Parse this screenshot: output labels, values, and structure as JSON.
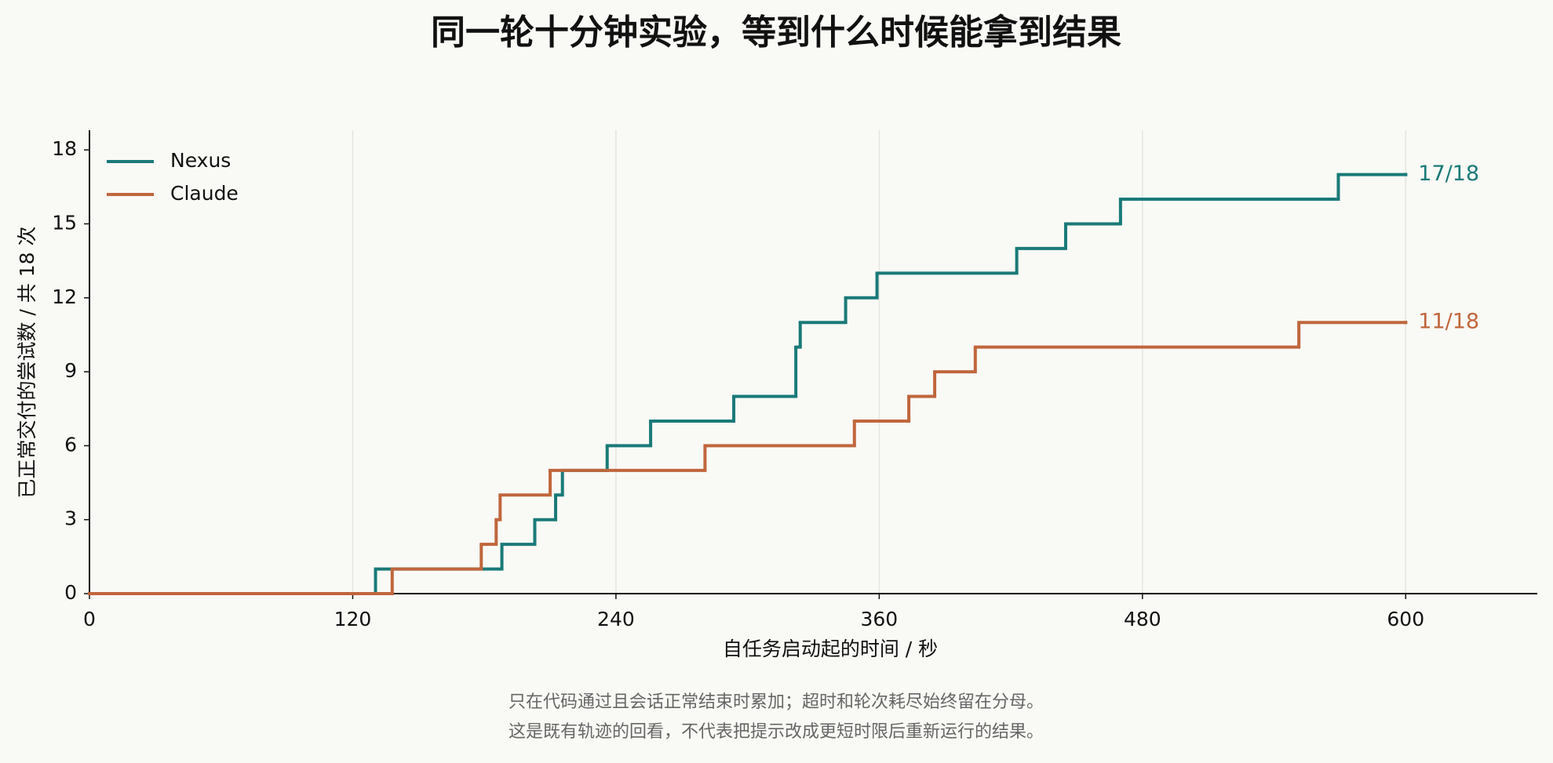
{
  "chart_data": {
    "type": "step",
    "title": "同一轮十分钟实验，等到什么时候能拿到结果",
    "x_label": "自任务启动起的时间 / 秒",
    "y_label": "已正常交付的尝试数 / 共 18 次",
    "footnote": [
      "只在代码通过且会话正常结束时累加；超时和轮次耗尽始终留在分母。",
      "这是既有轨迹的回看，不代表把提示改成更短时限后重新运行的结果。"
    ],
    "xlim": [
      0,
      660
    ],
    "xticks": [
      0,
      120,
      240,
      360,
      480,
      600
    ],
    "ylim": [
      0,
      18.8
    ],
    "yticks": [
      0,
      3,
      6,
      9,
      12,
      15,
      18
    ],
    "grid": true,
    "legend": "upper left",
    "series": [
      {
        "name": "Nexus",
        "color": "#1a7a78",
        "end_label": "17/18",
        "x": [
          0,
          130.4,
          188,
          203,
          212.5,
          215.6,
          236,
          255.8,
          293.7,
          322,
          324,
          344.7,
          359,
          422.7,
          445,
          470,
          569.3,
          600
        ],
        "values": [
          0,
          1,
          2,
          3,
          4,
          5,
          6,
          7,
          8,
          10,
          11,
          12,
          13,
          14,
          15,
          16,
          17,
          17
        ]
      },
      {
        "name": "Claude",
        "color": "#c0663c",
        "end_label": "11/18",
        "x": [
          0,
          138,
          178.6,
          185.4,
          187.2,
          210,
          280.6,
          348.7,
          373.5,
          385.3,
          403.8,
          551.3,
          600
        ],
        "values": [
          0,
          1,
          2,
          3,
          4,
          5,
          6,
          7,
          8,
          9,
          10,
          11,
          11
        ]
      }
    ]
  }
}
